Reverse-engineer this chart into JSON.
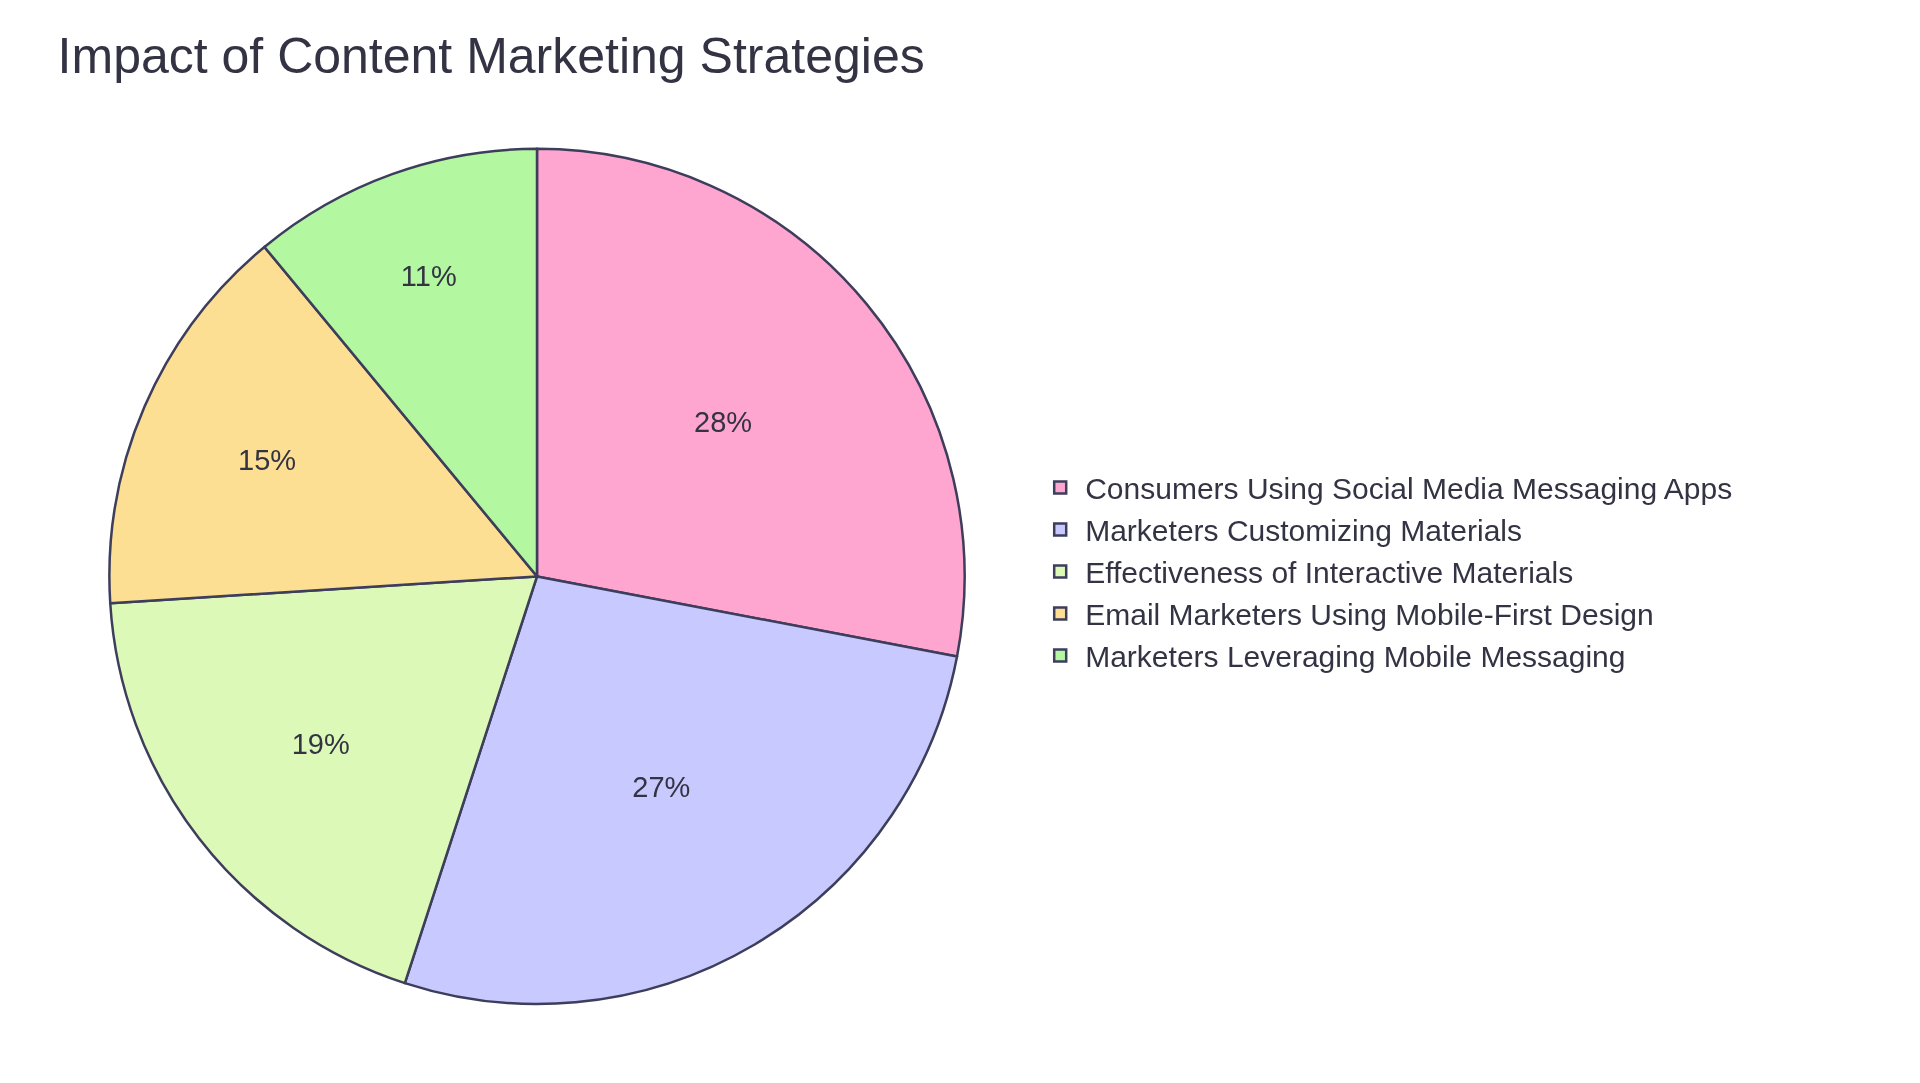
{
  "chart_data": {
    "type": "pie",
    "title": "Impact of Content Marketing Strategies",
    "categories": [
      "Consumers Using Social Media Messaging Apps",
      "Marketers Customizing Materials",
      "Effectiveness of Interactive Materials",
      "Email Marketers Using Mobile-First Design",
      "Marketers Leveraging Mobile Messaging"
    ],
    "values": [
      28,
      27,
      19,
      15,
      11
    ],
    "value_labels": [
      "28%",
      "27%",
      "19%",
      "15%",
      "11%"
    ],
    "colors": [
      "#ffa6d0",
      "#c8caff",
      "#dcf9b8",
      "#fddf93",
      "#b3f7a1"
    ],
    "legend": "right"
  }
}
